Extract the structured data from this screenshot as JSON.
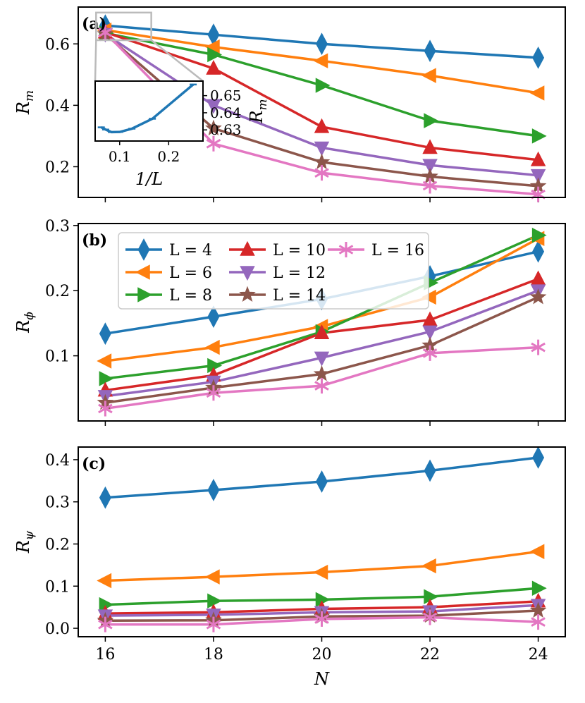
{
  "chart_data": [
    {
      "panel": "(a)",
      "type": "line",
      "ylabel_base": "R",
      "ylabel_sub": "m",
      "x": [
        16,
        18,
        20,
        22,
        24
      ],
      "xlim": [
        15.5,
        24.5
      ],
      "ylim": [
        0.1,
        0.72
      ],
      "yticks": [
        0.2,
        0.4,
        0.6
      ],
      "ytick_labels": [
        "0.2",
        "0.4",
        "0.6"
      ],
      "series": [
        {
          "name": "L = 4",
          "color": "#1f77b4",
          "marker": "diamond",
          "values": [
            0.66,
            0.63,
            0.6,
            0.577,
            0.555
          ]
        },
        {
          "name": "L = 6",
          "color": "#ff7f0e",
          "marker": "triangle-left",
          "values": [
            0.645,
            0.59,
            0.545,
            0.497,
            0.44
          ]
        },
        {
          "name": "L = 8",
          "color": "#2ca02c",
          "marker": "triangle-right",
          "values": [
            0.635,
            0.565,
            0.465,
            0.35,
            0.3
          ]
        },
        {
          "name": "L = 10",
          "color": "#d62728",
          "marker": "triangle-up",
          "values": [
            0.638,
            0.52,
            0.33,
            0.262,
            0.222
          ]
        },
        {
          "name": "L = 12",
          "color": "#9467bd",
          "marker": "triangle-down",
          "values": [
            0.632,
            0.4,
            0.262,
            0.205,
            0.172
          ]
        },
        {
          "name": "L = 14",
          "color": "#8c564b",
          "marker": "star",
          "values": [
            0.632,
            0.325,
            0.215,
            0.168,
            0.137
          ]
        },
        {
          "name": "L = 16",
          "color": "#e377c2",
          "marker": "asterisk",
          "values": [
            0.637,
            0.275,
            0.18,
            0.138,
            0.11
          ]
        }
      ],
      "inset": {
        "xlabel": "1/L",
        "ylabel_base": "R",
        "ylabel_sub": "m",
        "xlim": [
          0.05,
          0.27
        ],
        "ylim": [
          0.6235,
          0.6585
        ],
        "xticks": [
          0.1,
          0.2
        ],
        "xtick_labels": [
          "0.1",
          "0.2"
        ],
        "yticks": [
          0.63,
          0.64,
          0.65
        ],
        "ytick_labels": [
          "0.63",
          "0.64",
          "0.65"
        ],
        "color": "#1f77b4",
        "x": [
          0.0625,
          0.0714,
          0.0833,
          0.1,
          0.125,
          0.1667,
          0.25
        ],
        "values": [
          0.6315,
          0.6302,
          0.6287,
          0.6288,
          0.6307,
          0.6365,
          0.6565
        ]
      }
    },
    {
      "panel": "(b)",
      "type": "line",
      "ylabel_base": "R",
      "ylabel_sub": "ϕ",
      "x": [
        16,
        18,
        20,
        22,
        24
      ],
      "xlim": [
        15.5,
        24.5
      ],
      "ylim": [
        0.0,
        0.303
      ],
      "yticks": [
        0.1,
        0.2,
        0.3
      ],
      "ytick_labels": [
        "0.1",
        "0.2",
        "0.3"
      ],
      "series": [
        {
          "name": "L = 4",
          "color": "#1f77b4",
          "marker": "diamond",
          "values": [
            0.134,
            0.16,
            0.187,
            0.222,
            0.26
          ]
        },
        {
          "name": "L = 6",
          "color": "#ff7f0e",
          "marker": "triangle-left",
          "values": [
            0.092,
            0.113,
            0.145,
            0.19,
            0.28
          ]
        },
        {
          "name": "L = 8",
          "color": "#2ca02c",
          "marker": "triangle-right",
          "values": [
            0.065,
            0.085,
            0.137,
            0.212,
            0.285
          ]
        },
        {
          "name": "L = 10",
          "color": "#d62728",
          "marker": "triangle-up",
          "values": [
            0.047,
            0.07,
            0.135,
            0.155,
            0.218
          ]
        },
        {
          "name": "L = 12",
          "color": "#9467bd",
          "marker": "triangle-down",
          "values": [
            0.038,
            0.06,
            0.097,
            0.137,
            0.2
          ]
        },
        {
          "name": "L = 14",
          "color": "#8c564b",
          "marker": "star",
          "values": [
            0.028,
            0.051,
            0.072,
            0.116,
            0.19
          ]
        },
        {
          "name": "L = 16",
          "color": "#e377c2",
          "marker": "asterisk",
          "values": [
            0.019,
            0.043,
            0.054,
            0.104,
            0.113
          ]
        }
      ],
      "legend": {
        "placement": "upper-center",
        "ncol": 3
      }
    },
    {
      "panel": "(c)",
      "type": "line",
      "ylabel_base": "R",
      "ylabel_sub": "ψ",
      "xlabel": "N",
      "x": [
        16,
        18,
        20,
        22,
        24
      ],
      "xlim": [
        15.5,
        24.5
      ],
      "xticks": [
        16,
        18,
        20,
        22,
        24
      ],
      "xtick_labels": [
        "16",
        "18",
        "20",
        "22",
        "24"
      ],
      "ylim": [
        -0.02,
        0.43
      ],
      "yticks": [
        0.0,
        0.1,
        0.2,
        0.3,
        0.4
      ],
      "ytick_labels": [
        "0.0",
        "0.1",
        "0.2",
        "0.3",
        "0.4"
      ],
      "series": [
        {
          "name": "L = 4",
          "color": "#1f77b4",
          "marker": "diamond",
          "values": [
            0.31,
            0.328,
            0.348,
            0.374,
            0.405
          ]
        },
        {
          "name": "L = 6",
          "color": "#ff7f0e",
          "marker": "triangle-left",
          "values": [
            0.113,
            0.122,
            0.133,
            0.148,
            0.182
          ]
        },
        {
          "name": "L = 8",
          "color": "#2ca02c",
          "marker": "triangle-right",
          "values": [
            0.056,
            0.065,
            0.068,
            0.075,
            0.095
          ]
        },
        {
          "name": "L = 10",
          "color": "#d62728",
          "marker": "triangle-up",
          "values": [
            0.035,
            0.038,
            0.046,
            0.05,
            0.064
          ]
        },
        {
          "name": "L = 12",
          "color": "#9467bd",
          "marker": "triangle-down",
          "values": [
            0.03,
            0.032,
            0.038,
            0.04,
            0.055
          ]
        },
        {
          "name": "L = 14",
          "color": "#8c564b",
          "marker": "star",
          "values": [
            0.018,
            0.019,
            0.028,
            0.03,
            0.042
          ]
        },
        {
          "name": "L = 16",
          "color": "#e377c2",
          "marker": "asterisk",
          "values": [
            0.009,
            0.009,
            0.022,
            0.026,
            0.015
          ]
        }
      ]
    }
  ]
}
